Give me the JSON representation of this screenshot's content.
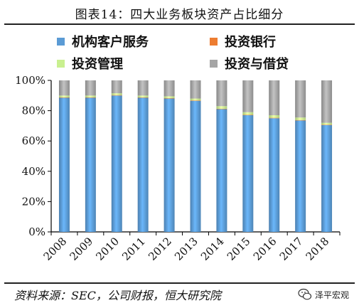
{
  "title": "图表14：四大业务板块资产占比细分",
  "source": "资料来源：SEC，公司财报，恒大研究院",
  "brand": {
    "name": "泽平宏观",
    "icon": "wechat-icon"
  },
  "colors": {
    "institutional": "#5b9bd5",
    "investment_banking": "#ed7d31",
    "investment_management": "#c9f090",
    "investment_lending": "#a5a5a5"
  },
  "chart_data": {
    "type": "bar",
    "stacked": true,
    "categories": [
      "2008",
      "2009",
      "2010",
      "2011",
      "2012",
      "2013",
      "2014",
      "2015",
      "2016",
      "2017",
      "2018"
    ],
    "series": [
      {
        "name": "机构客户服务",
        "key": "institutional",
        "values": [
          88.5,
          88.5,
          90,
          88.5,
          88,
          86.5,
          81,
          77,
          75,
          73.5,
          70.5
        ]
      },
      {
        "name": "投资银行",
        "key": "investment_banking",
        "values": [
          0.3,
          0.3,
          0.3,
          0.3,
          0.3,
          0.3,
          0.3,
          0.3,
          0.3,
          0.3,
          0.3
        ]
      },
      {
        "name": "投资管理",
        "key": "investment_management",
        "values": [
          1.2,
          1.2,
          1.2,
          1.2,
          1.2,
          1.2,
          1.7,
          1.7,
          1.7,
          1.7,
          1.2
        ]
      },
      {
        "name": "投资与借贷",
        "key": "investment_lending",
        "values": [
          10,
          10,
          8.5,
          10,
          10.5,
          12,
          17,
          21,
          23,
          24.5,
          28
        ]
      }
    ],
    "ylim": [
      0,
      100
    ],
    "yticks": [
      "0%",
      "20%",
      "40%",
      "60%",
      "80%",
      "100%"
    ],
    "grid": false,
    "legend": "top"
  }
}
